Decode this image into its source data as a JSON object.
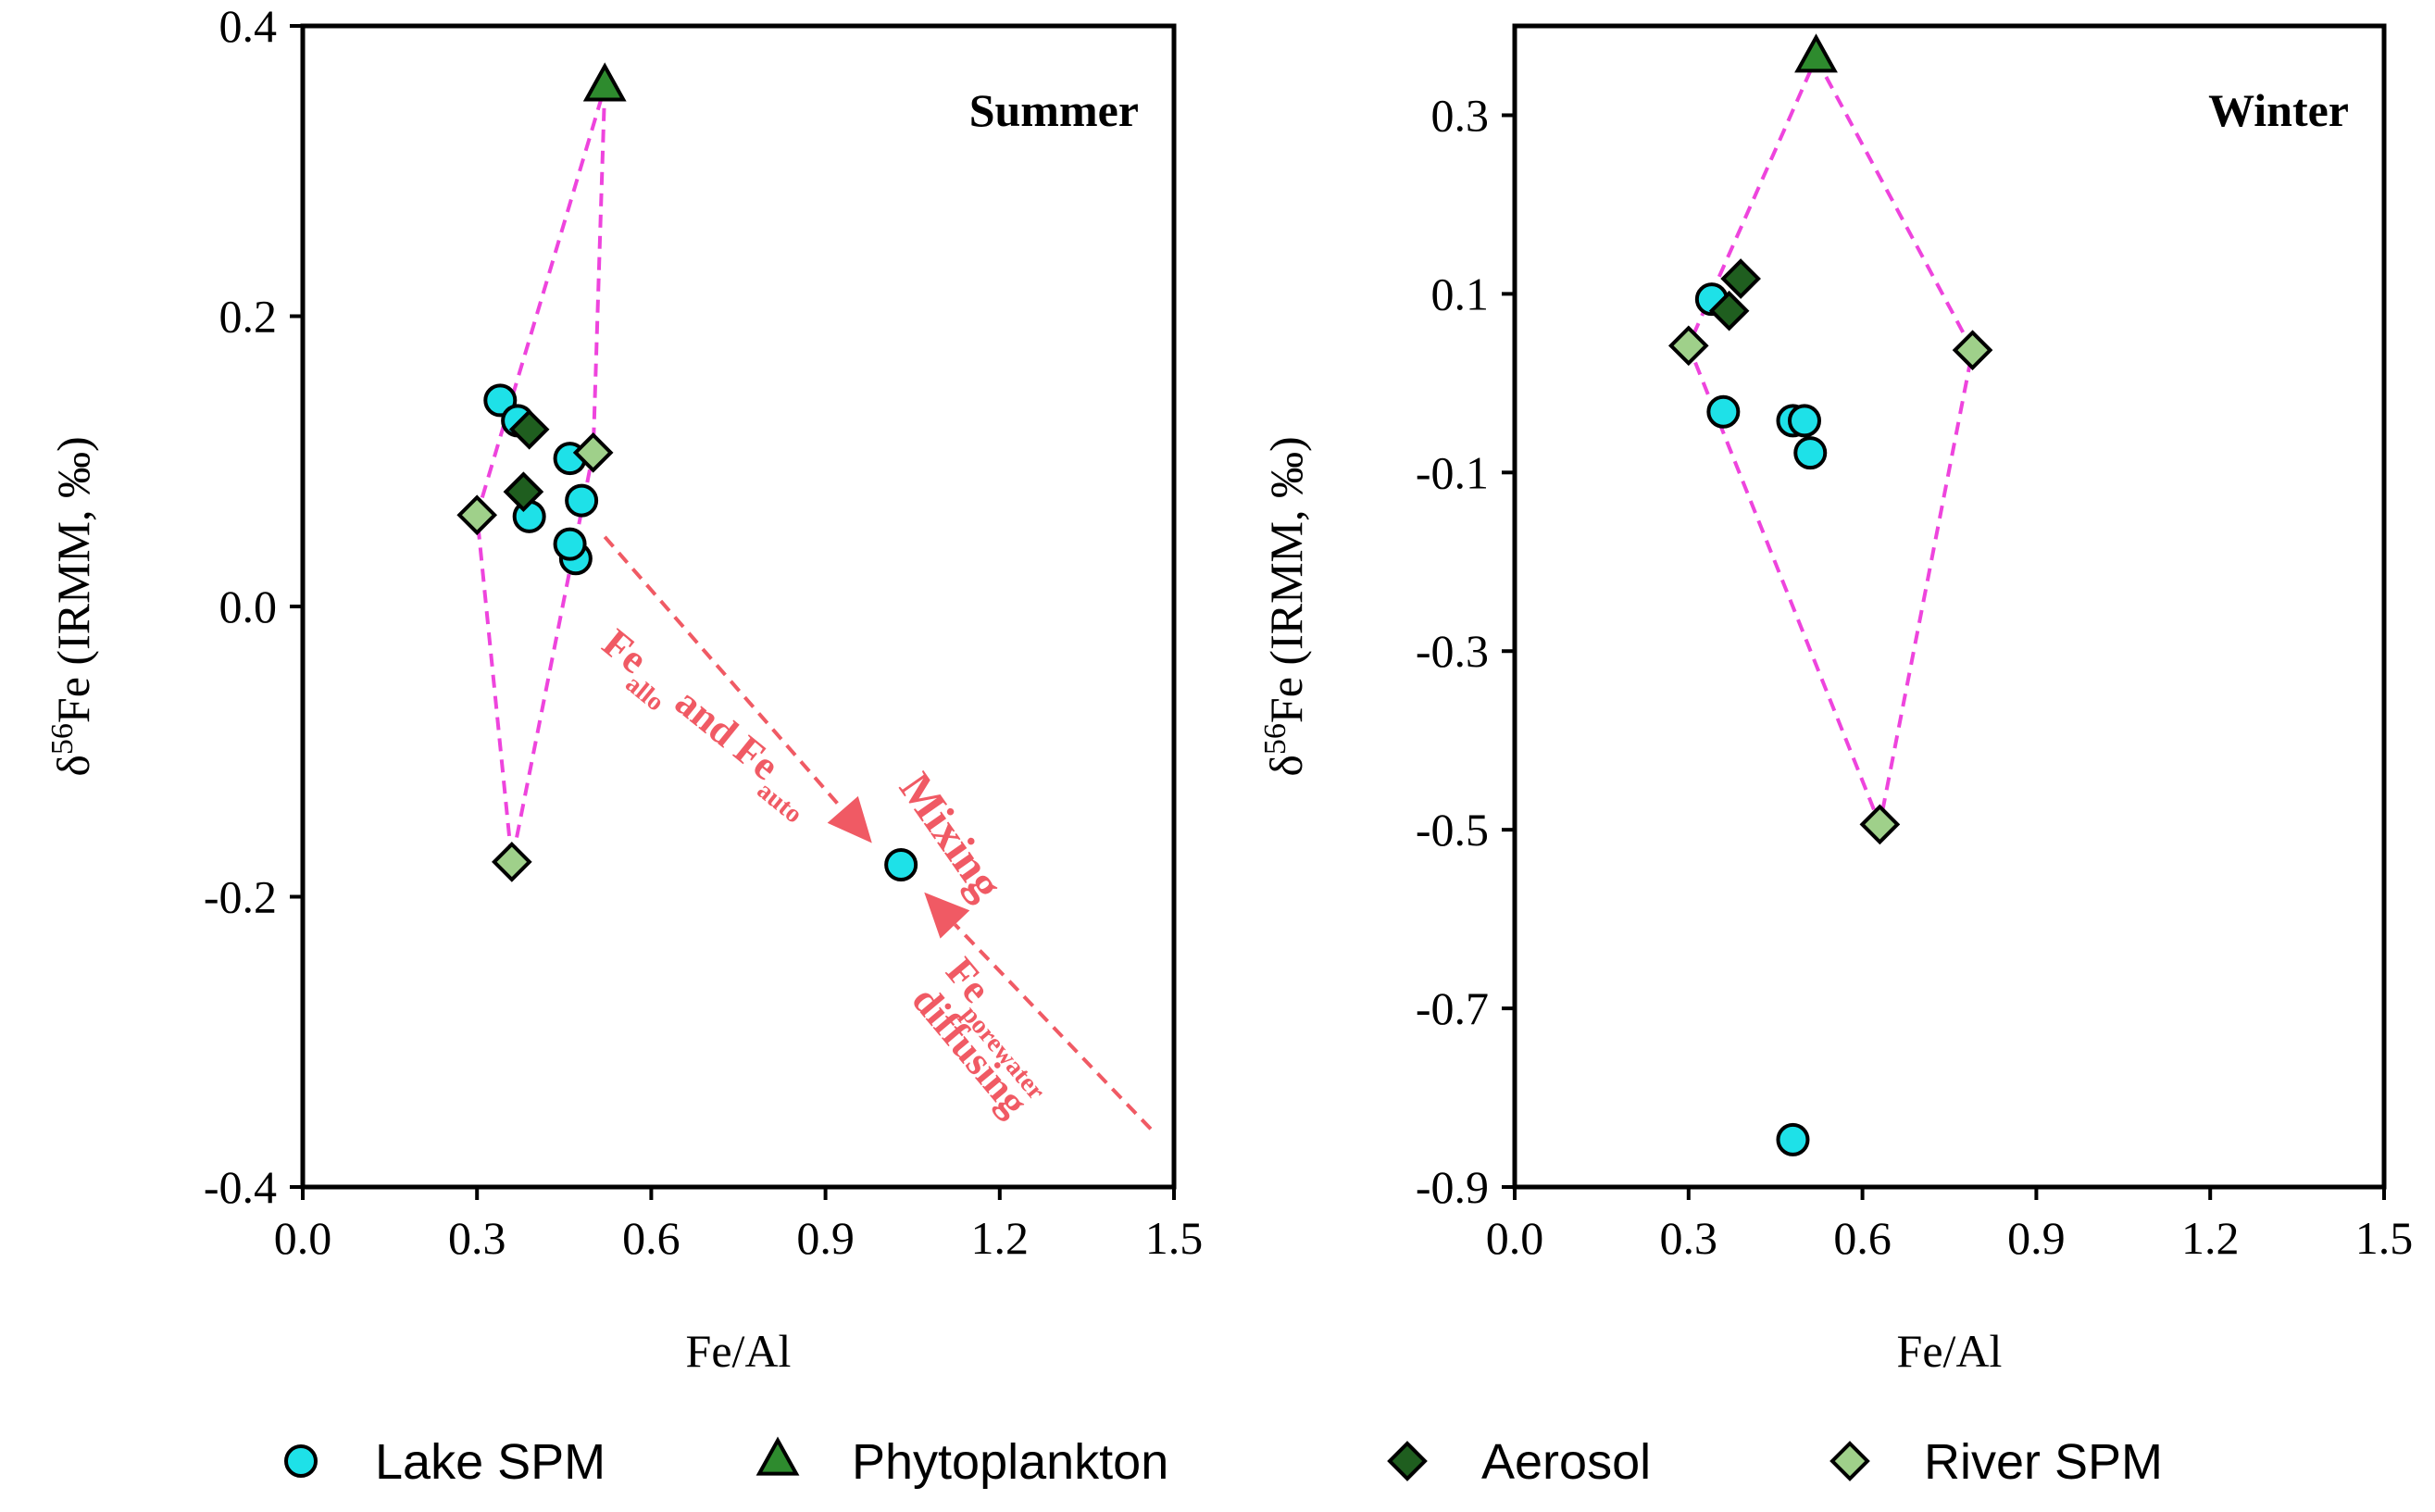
{
  "colors": {
    "lake": "#1ee1e8",
    "phyto": "#2e8b2e",
    "aerosol": "#1f5e1f",
    "river": "#9fd08a",
    "envelope": "#ee44dd",
    "annotation": "#f05a64"
  },
  "legend": [
    {
      "label": "Lake SPM",
      "marker": "circle",
      "color": "#1ee1e8"
    },
    {
      "label": "Phytoplankton",
      "marker": "triangle",
      "color": "#2e8b2e"
    },
    {
      "label": "Aerosol",
      "marker": "diamond",
      "color": "#1f5e1f"
    },
    {
      "label": "River SPM",
      "marker": "diamond",
      "color": "#9fd08a"
    }
  ],
  "chart_data": [
    {
      "type": "scatter",
      "title": "Summer",
      "xlabel": "Fe/Al",
      "ylabel_main": "δ",
      "ylabel_sup": "56",
      "ylabel_rest": "Fe  (IRMM, ‰)",
      "xlim": [
        0,
        1.5
      ],
      "ylim": [
        -0.4,
        0.4
      ],
      "xticks": [
        "0.0",
        "0.3",
        "0.6",
        "0.9",
        "1.2",
        "1.5"
      ],
      "yticks": [
        "-0.4",
        "-0.2",
        "0.0",
        "0.2",
        "0.4"
      ],
      "series": [
        {
          "name": "Lake SPM",
          "marker": "circle",
          "x": [
            0.34,
            0.37,
            0.39,
            0.46,
            0.47,
            0.48,
            0.46,
            1.03
          ],
          "y": [
            0.142,
            0.128,
            0.062,
            0.102,
            0.033,
            0.073,
            0.043,
            -0.178
          ]
        },
        {
          "name": "Phytoplankton",
          "marker": "triangle",
          "x": [
            0.52
          ],
          "y": [
            0.358
          ]
        },
        {
          "name": "Aerosol",
          "marker": "diamond",
          "x": [
            0.39,
            0.38
          ],
          "y": [
            0.122,
            0.079
          ]
        },
        {
          "name": "River SPM",
          "marker": "diamond",
          "x": [
            0.3,
            0.5,
            0.36
          ],
          "y": [
            0.063,
            0.106,
            -0.176
          ]
        }
      ],
      "envelope": {
        "x": [
          0.52,
          0.5,
          0.36,
          0.3
        ],
        "y": [
          0.358,
          0.106,
          -0.176,
          0.063
        ]
      },
      "annotations": {
        "arrow1": {
          "from": [
            0.52,
            0.048
          ],
          "to": [
            0.98,
            -0.163
          ]
        },
        "arrow2": {
          "from": [
            1.46,
            -0.36
          ],
          "to": [
            1.07,
            -0.197
          ]
        },
        "mixing": "Mixing",
        "fe1_base": "Fe",
        "fe1_sub": "allo",
        "fe1_mid": " and Fe",
        "fe1_sub2": "auto",
        "fe2_base": "Fe",
        "fe2_sub": "porewater",
        "fe2_line2": "diffusing"
      }
    },
    {
      "type": "scatter",
      "title": "Winter",
      "xlabel": "Fe/Al",
      "ylabel_main": "δ",
      "ylabel_sup": "56",
      "ylabel_rest": "Fe  (IRMM, ‰)",
      "xlim": [
        0,
        1.5
      ],
      "ylim": [
        -0.9,
        0.4
      ],
      "xticks": [
        "0.0",
        "0.3",
        "0.6",
        "0.9",
        "1.2",
        "1.5"
      ],
      "yticks": [
        "0.3",
        "0.1",
        "-0.1",
        "-0.3",
        "-0.5",
        "-0.7",
        "-0.9"
      ],
      "series": [
        {
          "name": "Lake SPM",
          "marker": "circle",
          "x": [
            0.34,
            0.36,
            0.48,
            0.5,
            0.51,
            0.48
          ],
          "y": [
            0.094,
            -0.032,
            -0.042,
            -0.042,
            -0.078,
            -0.847
          ]
        },
        {
          "name": "Phytoplankton",
          "marker": "triangle",
          "x": [
            0.52
          ],
          "y": [
            0.364
          ]
        },
        {
          "name": "Aerosol",
          "marker": "diamond",
          "x": [
            0.39,
            0.37
          ],
          "y": [
            0.117,
            0.081
          ]
        },
        {
          "name": "River SPM",
          "marker": "diamond",
          "x": [
            0.3,
            0.79,
            0.63
          ],
          "y": [
            0.042,
            0.037,
            -0.494
          ]
        }
      ],
      "envelope": {
        "x": [
          0.52,
          0.79,
          0.63,
          0.3
        ],
        "y": [
          0.364,
          0.037,
          -0.494,
          0.042
        ]
      }
    }
  ]
}
